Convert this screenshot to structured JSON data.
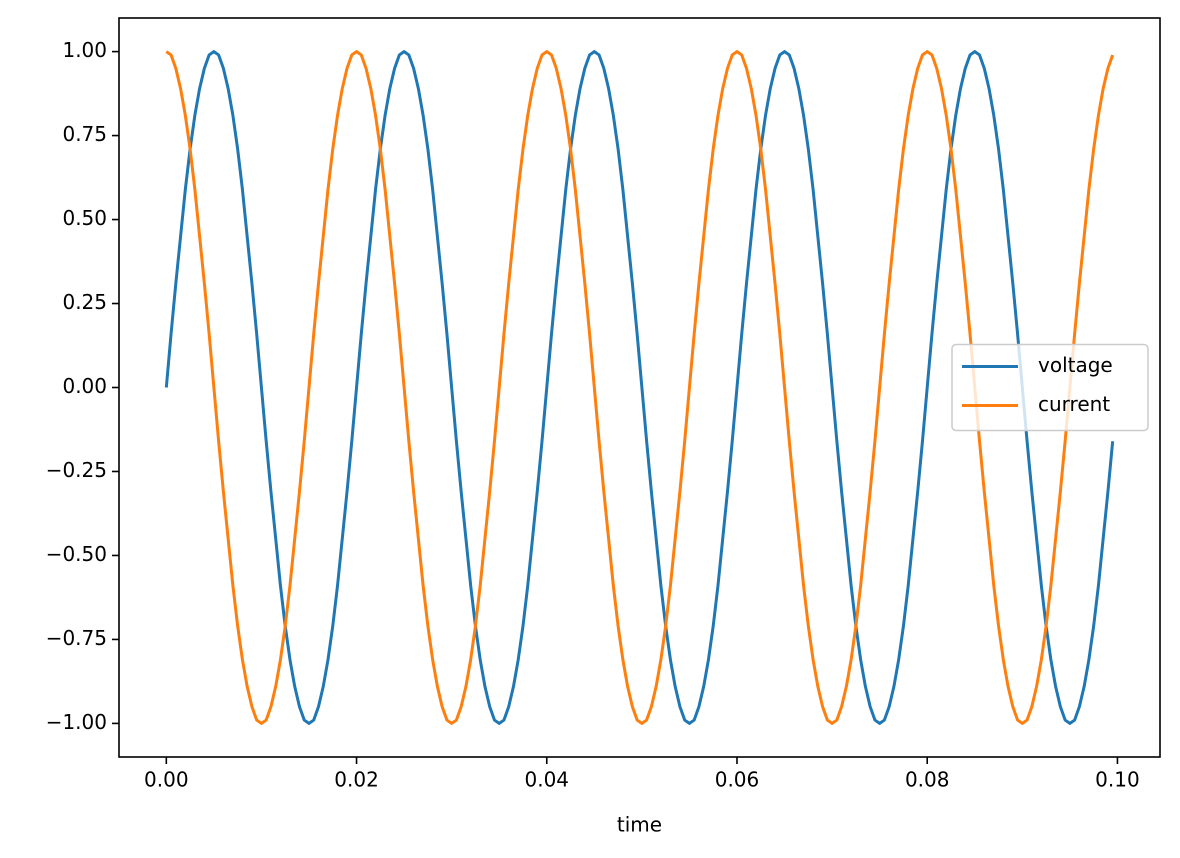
{
  "chart_data": {
    "type": "line",
    "x_label": "time",
    "x": [
      0,
      0.0005,
      0.001,
      0.0015,
      0.002,
      0.0025,
      0.003,
      0.0035,
      0.004,
      0.0045,
      0.005,
      0.0055,
      0.006,
      0.0065,
      0.007,
      0.0075,
      0.008,
      0.0085,
      0.009,
      0.0095,
      0.01,
      0.0105,
      0.011,
      0.0115,
      0.012,
      0.0125,
      0.013,
      0.0135,
      0.014,
      0.0145,
      0.015,
      0.0155,
      0.016,
      0.0165,
      0.017,
      0.0175,
      0.018,
      0.0185,
      0.019,
      0.0195,
      0.02,
      0.0205,
      0.021,
      0.0215,
      0.022,
      0.0225,
      0.023,
      0.0235,
      0.024,
      0.0245,
      0.025,
      0.0255,
      0.026,
      0.0265,
      0.027,
      0.0275,
      0.028,
      0.0285,
      0.029,
      0.0295,
      0.03,
      0.0305,
      0.031,
      0.0315,
      0.032,
      0.0325,
      0.033,
      0.0335,
      0.034,
      0.0345,
      0.035,
      0.0355,
      0.036,
      0.0365,
      0.037,
      0.0375,
      0.038,
      0.0385,
      0.039,
      0.0395,
      0.04,
      0.0405,
      0.041,
      0.0415,
      0.042,
      0.0425,
      0.043,
      0.0435,
      0.044,
      0.0445,
      0.045,
      0.0455,
      0.046,
      0.0465,
      0.047,
      0.0475,
      0.048,
      0.0485,
      0.049,
      0.0495,
      0.05,
      0.0505,
      0.051,
      0.0515,
      0.052,
      0.0525,
      0.053,
      0.0535,
      0.054,
      0.0545,
      0.055,
      0.0555,
      0.056,
      0.0565,
      0.057,
      0.0575,
      0.058,
      0.0585,
      0.059,
      0.0595,
      0.06,
      0.0605,
      0.061,
      0.0615,
      0.062,
      0.0625,
      0.063,
      0.0635,
      0.064,
      0.0645,
      0.065,
      0.0655,
      0.066,
      0.0665,
      0.067,
      0.0675,
      0.068,
      0.0685,
      0.069,
      0.0695,
      0.07,
      0.0705,
      0.071,
      0.0715,
      0.072,
      0.0725,
      0.073,
      0.0735,
      0.074,
      0.0745,
      0.075,
      0.0755,
      0.076,
      0.0765,
      0.077,
      0.0775,
      0.078,
      0.0785,
      0.079,
      0.0795,
      0.08,
      0.0805,
      0.081,
      0.0815,
      0.082,
      0.0825,
      0.083,
      0.0835,
      0.084,
      0.0845,
      0.085,
      0.0855,
      0.086,
      0.0865,
      0.087,
      0.0875,
      0.088,
      0.0885,
      0.089,
      0.0895,
      0.09,
      0.0905,
      0.091,
      0.0915,
      0.092,
      0.0925,
      0.093,
      0.0935,
      0.094,
      0.0945,
      0.095,
      0.0955,
      0.096,
      0.0965,
      0.097,
      0.0975,
      0.098,
      0.0985,
      0.099,
      0.0995
    ],
    "series": [
      {
        "name": "voltage",
        "color": "#1f77b4",
        "values": [
          0,
          0.16,
          0.31,
          0.45,
          0.59,
          0.71,
          0.81,
          0.89,
          0.95,
          0.99,
          1,
          0.99,
          0.95,
          0.89,
          0.81,
          0.71,
          0.59,
          0.45,
          0.31,
          0.16,
          0,
          -0.16,
          -0.31,
          -0.45,
          -0.59,
          -0.71,
          -0.81,
          -0.89,
          -0.95,
          -0.99,
          -1,
          -0.99,
          -0.95,
          -0.89,
          -0.81,
          -0.71,
          -0.59,
          -0.45,
          -0.31,
          -0.16,
          0,
          0.16,
          0.31,
          0.45,
          0.59,
          0.71,
          0.81,
          0.89,
          0.95,
          0.99,
          1,
          0.99,
          0.95,
          0.89,
          0.81,
          0.71,
          0.59,
          0.45,
          0.31,
          0.16,
          0,
          -0.16,
          -0.31,
          -0.45,
          -0.59,
          -0.71,
          -0.81,
          -0.89,
          -0.95,
          -0.99,
          -1,
          -0.99,
          -0.95,
          -0.89,
          -0.81,
          -0.71,
          -0.59,
          -0.45,
          -0.31,
          -0.16,
          0,
          0.16,
          0.31,
          0.45,
          0.59,
          0.71,
          0.81,
          0.89,
          0.95,
          0.99,
          1,
          0.99,
          0.95,
          0.89,
          0.81,
          0.71,
          0.59,
          0.45,
          0.31,
          0.16,
          0,
          -0.16,
          -0.31,
          -0.45,
          -0.59,
          -0.71,
          -0.81,
          -0.89,
          -0.95,
          -0.99,
          -1,
          -0.99,
          -0.95,
          -0.89,
          -0.81,
          -0.71,
          -0.59,
          -0.45,
          -0.31,
          -0.16,
          0,
          0.16,
          0.31,
          0.45,
          0.59,
          0.71,
          0.81,
          0.89,
          0.95,
          0.99,
          1,
          0.99,
          0.95,
          0.89,
          0.81,
          0.71,
          0.59,
          0.45,
          0.31,
          0.16,
          0,
          -0.16,
          -0.31,
          -0.45,
          -0.59,
          -0.71,
          -0.81,
          -0.89,
          -0.95,
          -0.99,
          -1,
          -0.99,
          -0.95,
          -0.89,
          -0.81,
          -0.71,
          -0.59,
          -0.45,
          -0.31,
          -0.16,
          0,
          0.16,
          0.31,
          0.45,
          0.59,
          0.71,
          0.81,
          0.89,
          0.95,
          0.99,
          1,
          0.99,
          0.95,
          0.89,
          0.81,
          0.71,
          0.59,
          0.45,
          0.31,
          0.16,
          0,
          -0.16,
          -0.31,
          -0.45,
          -0.59,
          -0.71,
          -0.81,
          -0.89,
          -0.95,
          -0.99,
          -1,
          -0.99,
          -0.95,
          -0.89,
          -0.81,
          -0.71,
          -0.59,
          -0.45,
          -0.31,
          -0.16
        ]
      },
      {
        "name": "current",
        "color": "#ff7f0e",
        "values": [
          1,
          0.99,
          0.95,
          0.89,
          0.81,
          0.71,
          0.59,
          0.45,
          0.31,
          0.16,
          0,
          -0.16,
          -0.31,
          -0.45,
          -0.59,
          -0.71,
          -0.81,
          -0.89,
          -0.95,
          -0.99,
          -1,
          -0.99,
          -0.95,
          -0.89,
          -0.81,
          -0.71,
          -0.59,
          -0.45,
          -0.31,
          -0.16,
          0,
          0.16,
          0.31,
          0.45,
          0.59,
          0.71,
          0.81,
          0.89,
          0.95,
          0.99,
          1,
          0.99,
          0.95,
          0.89,
          0.81,
          0.71,
          0.59,
          0.45,
          0.31,
          0.16,
          0,
          -0.16,
          -0.31,
          -0.45,
          -0.59,
          -0.71,
          -0.81,
          -0.89,
          -0.95,
          -0.99,
          -1,
          -0.99,
          -0.95,
          -0.89,
          -0.81,
          -0.71,
          -0.59,
          -0.45,
          -0.31,
          -0.16,
          0,
          0.16,
          0.31,
          0.45,
          0.59,
          0.71,
          0.81,
          0.89,
          0.95,
          0.99,
          1,
          0.99,
          0.95,
          0.89,
          0.81,
          0.71,
          0.59,
          0.45,
          0.31,
          0.16,
          0,
          -0.16,
          -0.31,
          -0.45,
          -0.59,
          -0.71,
          -0.81,
          -0.89,
          -0.95,
          -0.99,
          -1,
          -0.99,
          -0.95,
          -0.89,
          -0.81,
          -0.71,
          -0.59,
          -0.45,
          -0.31,
          -0.16,
          0,
          0.16,
          0.31,
          0.45,
          0.59,
          0.71,
          0.81,
          0.89,
          0.95,
          0.99,
          1,
          0.99,
          0.95,
          0.89,
          0.81,
          0.71,
          0.59,
          0.45,
          0.31,
          0.16,
          0,
          -0.16,
          -0.31,
          -0.45,
          -0.59,
          -0.71,
          -0.81,
          -0.89,
          -0.95,
          -0.99,
          -1,
          -0.99,
          -0.95,
          -0.89,
          -0.81,
          -0.71,
          -0.59,
          -0.45,
          -0.31,
          -0.16,
          0,
          0.16,
          0.31,
          0.45,
          0.59,
          0.71,
          0.81,
          0.89,
          0.95,
          0.99,
          1,
          0.99,
          0.95,
          0.89,
          0.81,
          0.71,
          0.59,
          0.45,
          0.31,
          0.16,
          0,
          -0.16,
          -0.31,
          -0.45,
          -0.59,
          -0.71,
          -0.81,
          -0.89,
          -0.95,
          -0.99,
          -1,
          -0.99,
          -0.95,
          -0.89,
          -0.81,
          -0.71,
          -0.59,
          -0.45,
          -0.31,
          -0.16,
          0,
          0.16,
          0.31,
          0.45,
          0.59,
          0.71,
          0.81,
          0.89,
          0.95,
          0.99
        ]
      }
    ],
    "xlim": [
      -0.004975,
      0.104475
    ],
    "ylim": [
      -1.1,
      1.1
    ],
    "xticks": [
      {
        "value": 0,
        "label": "0.00"
      },
      {
        "value": 0.02,
        "label": "0.02"
      },
      {
        "value": 0.04,
        "label": "0.04"
      },
      {
        "value": 0.06,
        "label": "0.06"
      },
      {
        "value": 0.08,
        "label": "0.08"
      },
      {
        "value": 0.1,
        "label": "0.10"
      }
    ],
    "yticks": [
      {
        "value": -1,
        "label": "−1.00"
      },
      {
        "value": -0.75,
        "label": "−0.75"
      },
      {
        "value": -0.5,
        "label": "−0.50"
      },
      {
        "value": -0.25,
        "label": "−0.25"
      },
      {
        "value": 0,
        "label": "0.00"
      },
      {
        "value": 0.25,
        "label": "0.25"
      },
      {
        "value": 0.5,
        "label": "0.50"
      },
      {
        "value": 0.75,
        "label": "0.75"
      },
      {
        "value": 1,
        "label": "1.00"
      }
    ],
    "grid": false,
    "legend": "center right"
  }
}
